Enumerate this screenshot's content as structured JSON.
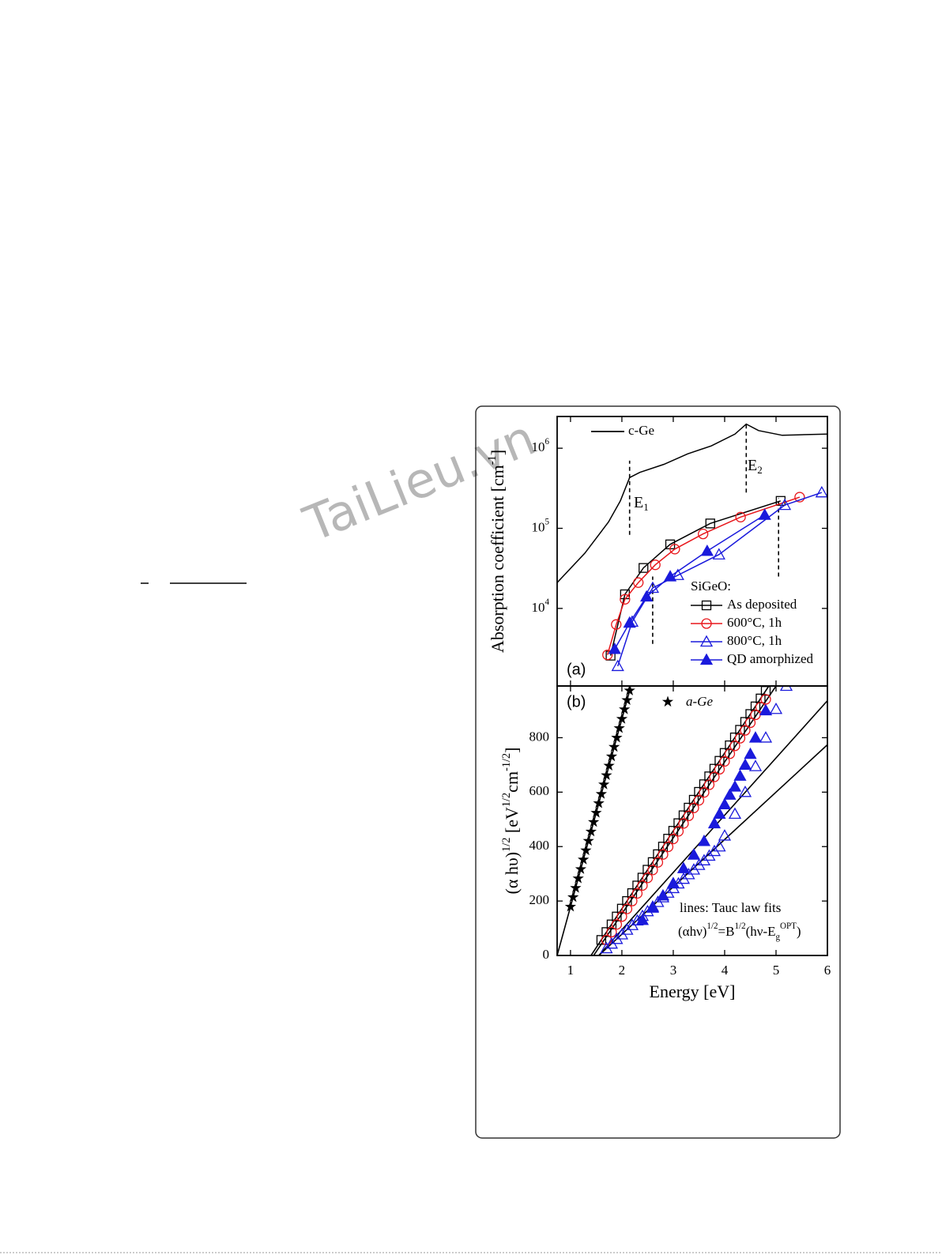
{
  "watermark": "TaiLieu.vn",
  "chart_data": [
    {
      "type": "line",
      "panel_label": "(a)",
      "log_y": true,
      "ylabel_parts": [
        {
          "text": "Absorption coefficient [cm"
        },
        {
          "text": "-1",
          "sup": true
        },
        {
          "text": "]"
        }
      ],
      "xlim": [
        0.74,
        6
      ],
      "ylim": [
        1075,
        2490000
      ],
      "yticks": [
        {
          "value": 10000,
          "label": "10",
          "exponent": "4"
        },
        {
          "value": 100000,
          "label": "10",
          "exponent": "5"
        },
        {
          "value": 1000000,
          "label": "10",
          "exponent": "6"
        }
      ],
      "legend_title": "SiGeO:",
      "series": [
        {
          "name": "c-Ge",
          "color": "#000000",
          "marker": "none",
          "x": [
            0.74,
            1.28,
            1.74,
            1.97,
            2.15,
            2.35,
            2.82,
            3.28,
            3.74,
            4.2,
            4.42,
            4.66,
            5.12,
            5.43,
            6
          ],
          "values": [
            21000,
            49000,
            120000,
            220000,
            430000,
            500000,
            630000,
            850000,
            1070000,
            1500000,
            2000000,
            1660000,
            1450000,
            1470000,
            1500000
          ]
        },
        {
          "name": "As deposited",
          "color": "#000000",
          "marker": "square",
          "x": [
            1.78,
            2.06,
            2.42,
            2.94,
            3.72,
            5.09
          ],
          "values": [
            2570,
            15000,
            32000,
            63000,
            115000,
            220000
          ]
        },
        {
          "name": "600°C, 1h",
          "color": "#e8161b",
          "marker": "circle",
          "x": [
            1.72,
            1.89,
            2.06,
            2.32,
            2.65,
            3.03,
            3.58,
            4.31,
            5.46
          ],
          "values": [
            2630,
            6300,
            13000,
            21000,
            35000,
            55000,
            85000,
            138000,
            245000
          ]
        },
        {
          "name": "800°C, 1h",
          "color": "#1a1adc",
          "marker": "triangle-open",
          "x": [
            1.92,
            2.2,
            2.6,
            3.09,
            3.89,
            5.17,
            5.89
          ],
          "values": [
            1900,
            6800,
            18000,
            26000,
            47000,
            195000,
            280000
          ]
        },
        {
          "name": "QD amorphized",
          "color": "#1a1adc",
          "marker": "triangle-filled",
          "x": [
            1.86,
            2.15,
            2.48,
            2.94,
            3.66,
            4.78
          ],
          "values": [
            3100,
            6600,
            14000,
            25000,
            52000,
            147000
          ]
        }
      ],
      "dashed_lines": [
        {
          "x": [
            2.15,
            2.15
          ],
          "values": [
            83000,
            700000
          ]
        },
        {
          "x": [
            4.42,
            4.42
          ],
          "values": [
            280000,
            2000000
          ]
        },
        {
          "x": [
            2.6,
            2.6
          ],
          "values": [
            3600,
            25000
          ]
        },
        {
          "x": [
            5.05,
            5.05
          ],
          "values": [
            25000,
            240000
          ]
        }
      ],
      "annotations": [
        {
          "parts": [
            {
              "text": "E"
            },
            {
              "text": "1",
              "sub": true
            }
          ]
        },
        {
          "parts": [
            {
              "text": "E"
            },
            {
              "text": "2",
              "sub": true
            }
          ]
        }
      ]
    },
    {
      "type": "scatter",
      "panel_label": "(b)",
      "xlabel": "Energy [eV]",
      "ylabel_parts": [
        {
          "text": "(α hυ)"
        },
        {
          "text": "1/2",
          "sup": true
        },
        {
          "text": " [eV"
        },
        {
          "text": "1/2",
          "sup": true
        },
        {
          "text": "cm"
        },
        {
          "text": "-1/2",
          "sup": true
        },
        {
          "text": "]"
        }
      ],
      "xlim": [
        0.74,
        6
      ],
      "xticks": [
        1,
        2,
        3,
        4,
        5,
        6
      ],
      "ylim": [
        0,
        990
      ],
      "yticks": [
        0,
        200,
        400,
        600,
        800
      ],
      "series": [
        {
          "name": "a-Ge",
          "color": "#000000",
          "marker": "star",
          "x": [
            1.0,
            1.05,
            1.1,
            1.15,
            1.2,
            1.25,
            1.3,
            1.35,
            1.4,
            1.45,
            1.5,
            1.55,
            1.6,
            1.65,
            1.7,
            1.75,
            1.8,
            1.85,
            1.9,
            1.95,
            2.0,
            2.05,
            2.1,
            2.15
          ],
          "values": [
            179,
            214,
            248,
            283,
            317,
            352,
            386,
            421,
            455,
            490,
            524,
            559,
            593,
            628,
            662,
            697,
            731,
            766,
            800,
            835,
            869,
            904,
            938,
            973
          ]
        },
        {
          "color": "#000000",
          "marker": "square",
          "x": [
            1.6,
            1.7,
            1.8,
            1.9,
            2.0,
            2.1,
            2.2,
            2.3,
            2.4,
            2.5,
            2.6,
            2.7,
            2.8,
            2.9,
            3.0,
            3.1,
            3.2,
            3.3,
            3.4,
            3.5,
            3.6,
            3.7,
            3.8,
            3.9,
            4.0,
            4.1,
            4.2,
            4.3,
            4.4,
            4.5,
            4.6,
            4.7,
            4.8
          ],
          "values": [
            57,
            86,
            114,
            143,
            172,
            200,
            229,
            257,
            286,
            315,
            343,
            372,
            400,
            429,
            458,
            486,
            515,
            543,
            572,
            601,
            629,
            658,
            686,
            715,
            744,
            772,
            801,
            829,
            858,
            887,
            915,
            944,
            972
          ]
        },
        {
          "color": "#e8161b",
          "marker": "circle",
          "x": [
            1.7,
            1.8,
            1.9,
            2.0,
            2.1,
            2.2,
            2.3,
            2.4,
            2.5,
            2.6,
            2.7,
            2.8,
            2.9,
            3.0,
            3.1,
            3.2,
            3.3,
            3.4,
            3.5,
            3.6,
            3.7,
            3.8,
            3.9,
            4.0,
            4.1,
            4.2,
            4.3,
            4.4,
            4.5,
            4.6,
            4.7,
            4.8
          ],
          "values": [
            57,
            86,
            114,
            143,
            171,
            200,
            228,
            257,
            285,
            314,
            342,
            371,
            399,
            428,
            456,
            485,
            513,
            542,
            570,
            599,
            627,
            656,
            684,
            713,
            741,
            770,
            798,
            827,
            855,
            884,
            912,
            941
          ]
        },
        {
          "color": "#1a1adc",
          "marker": "triangle-open",
          "x": [
            1.7,
            1.8,
            1.9,
            2.0,
            2.1,
            2.2,
            2.3,
            2.4,
            2.5,
            2.6,
            2.7,
            2.8,
            2.9,
            3.0,
            3.1,
            3.2,
            3.3,
            3.4,
            3.5,
            3.6,
            3.7,
            3.8,
            3.9,
            4.0,
            4.2,
            4.4,
            4.6,
            4.8,
            5.0,
            5.2
          ],
          "values": [
            26,
            43,
            60,
            77,
            94,
            111,
            128,
            145,
            162,
            179,
            196,
            213,
            230,
            247,
            264,
            281,
            298,
            315,
            332,
            349,
            366,
            383,
            400,
            440,
            520,
            600,
            695,
            800,
            905,
            990
          ]
        },
        {
          "color": "#1a1adc",
          "marker": "triangle-filled",
          "x": [
            2.4,
            2.6,
            2.8,
            3.0,
            3.2,
            3.4,
            3.6,
            3.8,
            3.9,
            4.0,
            4.1,
            4.2,
            4.3,
            4.4,
            4.5,
            4.6,
            4.8
          ],
          "values": [
            130,
            175,
            220,
            265,
            320,
            370,
            420,
            485,
            520,
            555,
            590,
            620,
            660,
            700,
            740,
            800,
            900
          ]
        }
      ],
      "fit_lines": [
        {
          "x": [
            0.74,
            2.17
          ],
          "values": [
            0,
            986
          ]
        },
        {
          "x": [
            1.4,
            4.86
          ],
          "values": [
            0,
            990
          ]
        },
        {
          "x": [
            1.45,
            5.0
          ],
          "values": [
            0,
            990
          ]
        },
        {
          "x": [
            1.55,
            6
          ],
          "values": [
            0,
            936
          ]
        },
        {
          "x": [
            1.55,
            6
          ],
          "values": [
            0,
            774
          ]
        }
      ],
      "annotations": [
        {
          "parts": [
            {
              "text": "lines: Tauc law fits"
            }
          ]
        },
        {
          "parts": [
            {
              "text": "(αhν)"
            },
            {
              "text": "1/2",
              "sup": true
            },
            {
              "text": "=B"
            },
            {
              "text": "1/2",
              "sup": true
            },
            {
              "text": "(hν-E"
            },
            {
              "text": "g",
              "sub": true
            },
            {
              "text": "OPT",
              "sup": true
            },
            {
              "text": ")"
            }
          ]
        }
      ]
    }
  ]
}
